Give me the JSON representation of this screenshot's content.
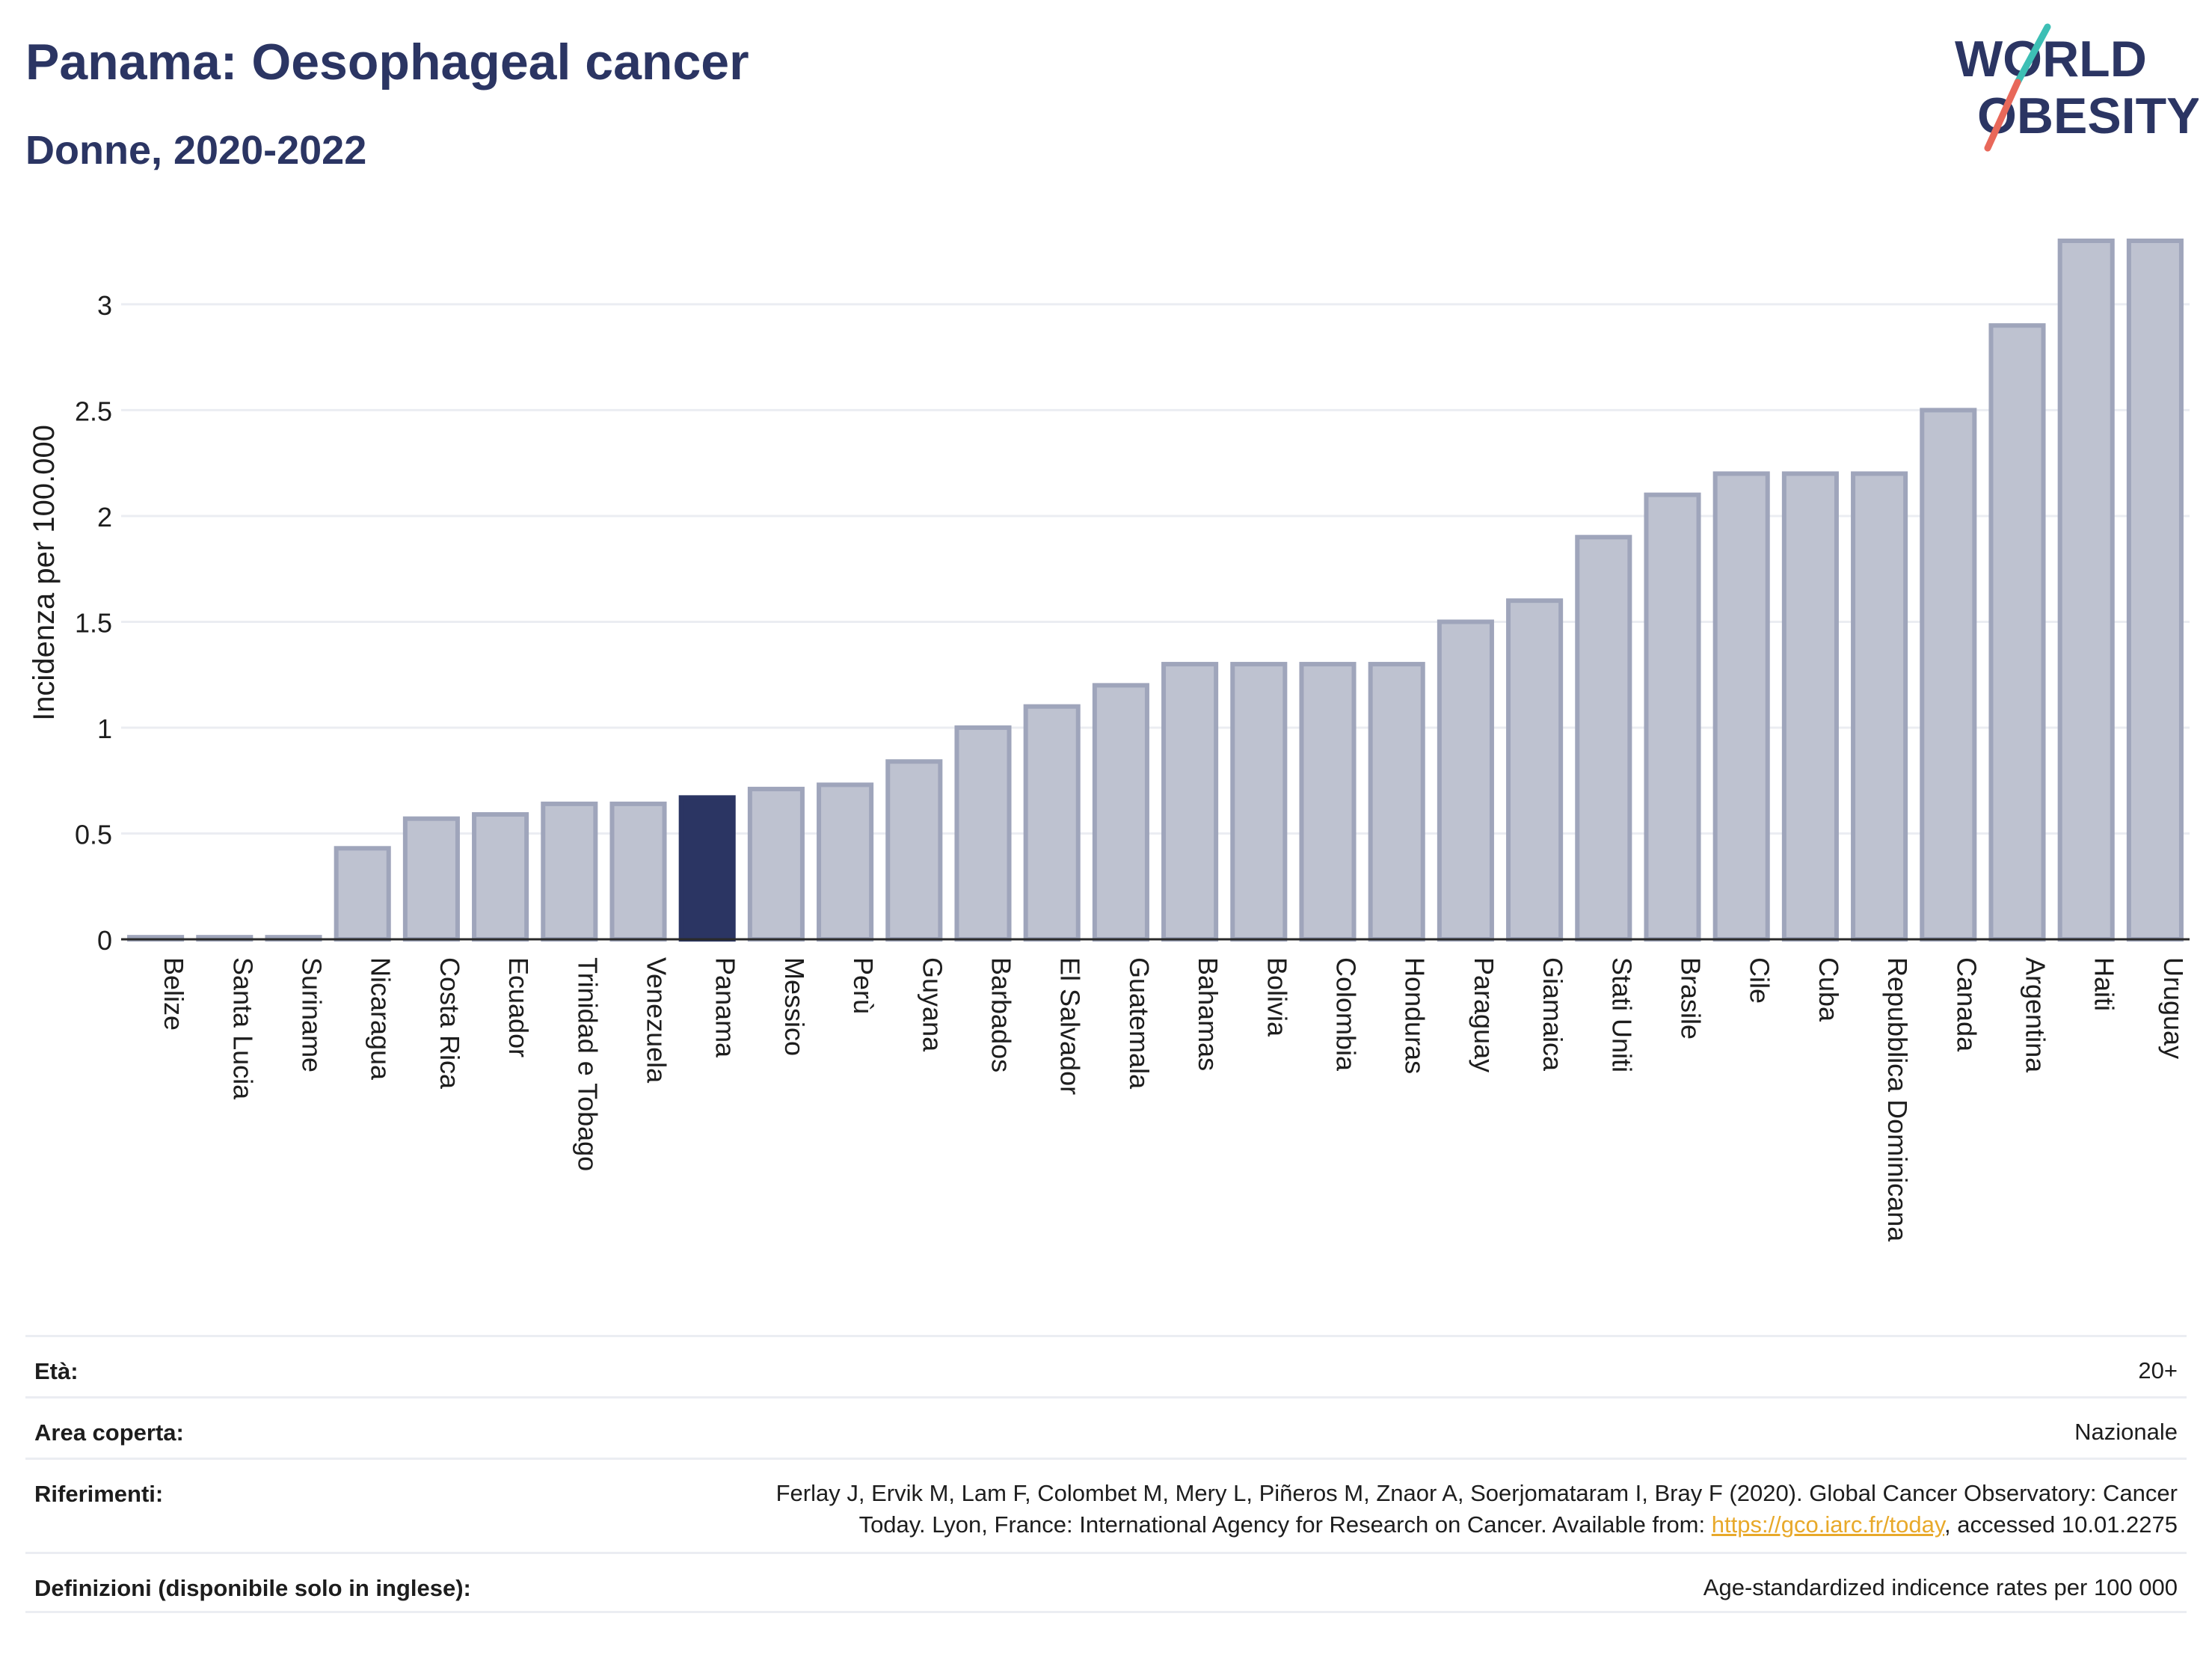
{
  "header": {
    "title": "Panama: Oesophageal cancer",
    "subtitle": "Donne, 2020-2022"
  },
  "logo": {
    "line1": "WORLD",
    "line2": "OBESITY",
    "brand_color": "#2b3563",
    "accent_teal": "#3dbfb5",
    "accent_coral": "#e8685a"
  },
  "colors": {
    "highlight_bar": "#2b3563",
    "other_bar_fill": "#bec2d0",
    "other_bar_stroke": "#9fa5bb",
    "grid": "#ebedf2"
  },
  "chart_data": {
    "type": "bar",
    "ylabel": "Incidenza per 100.000",
    "xlabel": "",
    "ylim": [
      0,
      3.3
    ],
    "yticks": [
      "0",
      "0.5",
      "1",
      "1.5",
      "2",
      "2.5",
      "3"
    ],
    "ytick_values": [
      0,
      0.5,
      1,
      1.5,
      2,
      2.5,
      3
    ],
    "highlight": "Panama",
    "grid": true,
    "categories": [
      "Belize",
      "Santa Lucia",
      "Suriname",
      "Nicaragua",
      "Costa Rica",
      "Ecuador",
      "Trinidad e Tobago",
      "Venezuela",
      "Panama",
      "Messico",
      "Perù",
      "Guyana",
      "Barbados",
      "El Salvador",
      "Guatemala",
      "Bahamas",
      "Bolivia",
      "Colombia",
      "Honduras",
      "Paraguay",
      "Giamaica",
      "Stati Uniti",
      "Brasile",
      "Cile",
      "Cuba",
      "Repubblica Dominicana",
      "Canada",
      "Argentina",
      "Haiti",
      "Uruguay"
    ],
    "values": [
      0.01,
      0.01,
      0.01,
      0.43,
      0.57,
      0.59,
      0.64,
      0.64,
      0.67,
      0.71,
      0.73,
      0.84,
      1.0,
      1.1,
      1.2,
      1.3,
      1.3,
      1.3,
      1.3,
      1.5,
      1.6,
      1.9,
      2.1,
      2.2,
      2.2,
      2.2,
      2.5,
      2.9,
      3.3,
      3.3
    ]
  },
  "info": {
    "age_label": "Età:",
    "age_value": "20+",
    "area_label": "Area coperta:",
    "area_value": "Nazionale",
    "ref_label": "Riferimenti:",
    "ref_text_line1": "Ferlay J, Ervik M, Lam F, Colombet M, Mery L, Piñeros M, Znaor A, Soerjomataram I, Bray F (2020). Global Cancer Observatory: Cancer",
    "ref_text_line2_a": "Today. Lyon, France: International Agency for Research on Cancer. Available from: ",
    "ref_link": "https://gco.iarc.fr/today",
    "ref_text_line2_b": ", accessed 10.01.2275",
    "def_label": "Definizioni (disponibile solo in inglese):",
    "def_value": "Age-standardized indicence rates per 100 000"
  }
}
